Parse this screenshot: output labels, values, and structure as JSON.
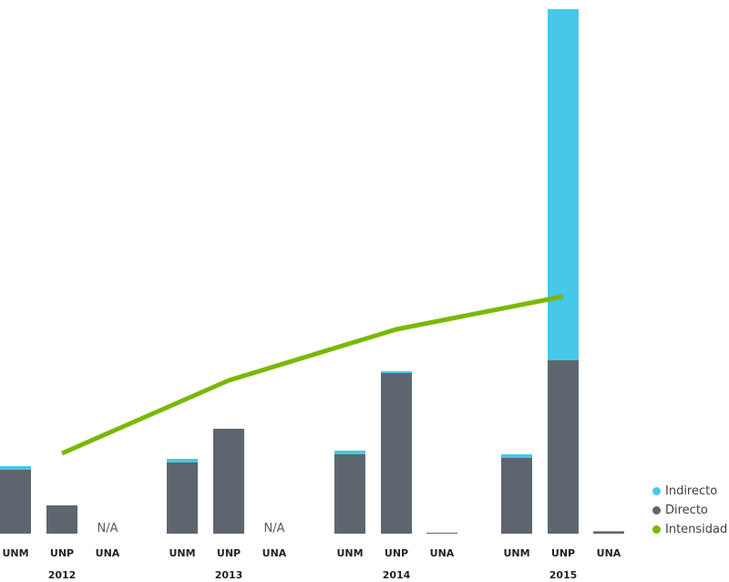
{
  "chart_data": {
    "type": "bar",
    "stacked": true,
    "secondary_series_type": "line",
    "colors": {
      "indirecto": "#46c8e8",
      "directo": "#5d666f",
      "intensidad": "#7ab800"
    },
    "groups": [
      {
        "year": "2012",
        "bars": [
          {
            "label": "UNM",
            "directo": 70,
            "indirecto": 4,
            "na": false
          },
          {
            "label": "UNP",
            "directo": 31,
            "indirecto": 0,
            "na": false
          },
          {
            "label": "UNA",
            "directo": 0,
            "indirecto": 0,
            "na": true,
            "na_label": "N/A"
          }
        ],
        "intensidad": 88
      },
      {
        "year": "2013",
        "bars": [
          {
            "label": "UNM",
            "directo": 78,
            "indirecto": 4,
            "na": false
          },
          {
            "label": "UNP",
            "directo": 115,
            "indirecto": 0,
            "na": false
          },
          {
            "label": "UNA",
            "directo": 0,
            "indirecto": 0,
            "na": true,
            "na_label": "N/A"
          }
        ],
        "intensidad": 168
      },
      {
        "year": "2014",
        "bars": [
          {
            "label": "UNM",
            "directo": 87,
            "indirecto": 4,
            "na": false
          },
          {
            "label": "UNP",
            "directo": 176,
            "indirecto": 2,
            "na": false
          },
          {
            "label": "UNA",
            "directo": 1,
            "indirecto": 0,
            "na": false
          }
        ],
        "intensidad": 224
      },
      {
        "year": "2015",
        "bars": [
          {
            "label": "UNM",
            "directo": 83,
            "indirecto": 4,
            "na": false
          },
          {
            "label": "UNP",
            "directo": 190,
            "indirecto": 385,
            "na": false
          },
          {
            "label": "UNA",
            "directo": 2,
            "indirecto": 1,
            "na": false
          }
        ],
        "intensidad": 260
      }
    ],
    "legend": [
      {
        "key": "indirecto",
        "label": "Indirecto"
      },
      {
        "key": "directo",
        "label": "Directo"
      },
      {
        "key": "intensidad",
        "label": "Intensidad"
      }
    ],
    "legend_position": "bottom-right",
    "ylim": [
      0,
      575
    ],
    "grid": false
  }
}
